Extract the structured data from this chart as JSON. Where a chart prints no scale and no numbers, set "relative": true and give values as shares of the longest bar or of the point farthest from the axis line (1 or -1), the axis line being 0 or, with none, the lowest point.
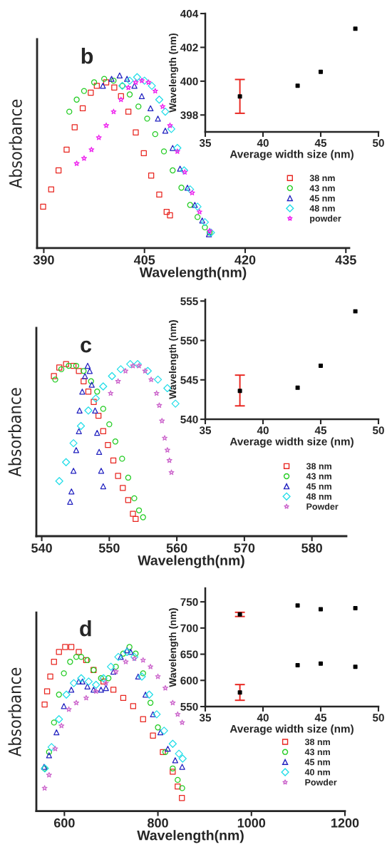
{
  "chart_data": [
    {
      "type": "scatter",
      "relative": true,
      "tick_labels": "x",
      "xlabel": "Wavelength(nm)",
      "ylabel": "Absorbance",
      "xlim": [
        389,
        435.5
      ],
      "xticks": [
        390,
        405,
        420,
        435
      ],
      "legend": "bottom right",
      "annotations": [
        "b"
      ],
      "series": [
        {
          "name": "38 nm",
          "color": "#e8251f",
          "marker": "square",
          "x": [
            389.9,
            391.1,
            392.2,
            393.4,
            394.6,
            395.8,
            397.0,
            397.9,
            399.3,
            400.5,
            401.5,
            402.6,
            403.7,
            404.9,
            406.0,
            407.2,
            408.3,
            408.8
          ],
          "values": [
            0.24,
            0.34,
            0.45,
            0.57,
            0.7,
            0.81,
            0.9,
            0.94,
            0.96,
            0.93,
            0.88,
            0.79,
            0.67,
            0.55,
            0.42,
            0.31,
            0.21,
            0.19
          ]
        },
        {
          "name": "43 nm",
          "color": "#22cc22",
          "marker": "circle",
          "x": [
            393.8,
            394.9,
            396.0,
            397.5,
            399.0,
            400.4,
            401.7,
            402.8,
            404.1,
            405.4,
            406.6,
            407.9,
            409.2,
            410.5,
            411.8,
            412.9,
            414.0,
            414.7
          ],
          "values": [
            0.79,
            0.86,
            0.91,
            0.96,
            0.98,
            0.97,
            0.94,
            0.89,
            0.82,
            0.75,
            0.66,
            0.56,
            0.45,
            0.35,
            0.25,
            0.18,
            0.12,
            0.09
          ]
        },
        {
          "name": "45 nm",
          "color": "#2222c0",
          "marker": "triangle",
          "x": [
            398.8,
            400.1,
            401.3,
            402.4,
            403.5,
            404.6,
            405.9,
            407.0,
            408.1,
            409.2,
            410.3,
            411.4,
            412.5,
            413.6,
            414.6
          ],
          "values": [
            0.94,
            0.98,
            1.0,
            0.98,
            0.94,
            0.88,
            0.81,
            0.75,
            0.68,
            0.58,
            0.46,
            0.35,
            0.25,
            0.16,
            0.08
          ]
        },
        {
          "name": "48 nm",
          "color": "#22dde8",
          "marker": "diamond",
          "x": [
            401.7,
            402.8,
            403.9,
            405.0,
            406.1,
            407.2,
            408.1,
            409.0,
            409.9,
            410.9,
            411.8,
            412.9,
            414.0,
            414.9
          ],
          "values": [
            0.94,
            0.97,
            0.99,
            0.97,
            0.94,
            0.86,
            0.79,
            0.69,
            0.58,
            0.45,
            0.34,
            0.24,
            0.15,
            0.09
          ]
        },
        {
          "name": "powder",
          "color": "#ee22ee",
          "marker": "star",
          "x": [
            394.9,
            396.0,
            397.1,
            398.2,
            399.3,
            400.4,
            401.5,
            402.6,
            403.7,
            404.6,
            405.6,
            406.6,
            407.7,
            408.8,
            409.9,
            411.0,
            412.1,
            413.2,
            414.7
          ],
          "values": [
            0.49,
            0.52,
            0.57,
            0.64,
            0.71,
            0.79,
            0.86,
            0.93,
            0.96,
            0.97,
            0.96,
            0.91,
            0.82,
            0.71,
            0.56,
            0.44,
            0.32,
            0.21,
            0.1
          ]
        }
      ]
    },
    {
      "type": "scatter",
      "xlabel": "Average width size (nm)",
      "ylabel": "Wavelength (nm)",
      "xlim": [
        35,
        50
      ],
      "xticks": [
        35,
        40,
        45,
        50
      ],
      "ylim": [
        397,
        404
      ],
      "yticks": [
        398,
        400,
        402,
        404
      ],
      "series": [
        {
          "color": "#000000",
          "marker": "square",
          "x": [
            38,
            43,
            45,
            48
          ],
          "values": [
            399.1,
            399.73,
            400.55,
            403.1
          ],
          "errors": [
            [
              398.1,
              400.1
            ],
            null,
            null,
            null
          ]
        }
      ]
    },
    {
      "type": "scatter",
      "relative": true,
      "tick_labels": "x",
      "xlabel": "Wavelength(nm)",
      "ylabel": "Absorbance",
      "xlim": [
        539.2,
        585.1
      ],
      "xticks": [
        540,
        550,
        560,
        570,
        580
      ],
      "legend": "bottom right",
      "annotations": [
        "c"
      ],
      "series": [
        {
          "name": "38 nm",
          "color": "#e8251f",
          "marker": "square",
          "x": [
            541.8,
            542.6,
            543.6,
            544.7,
            545.5,
            546.2,
            546.9,
            547.7,
            548.4,
            549.1,
            549.8,
            550.6,
            551.3,
            552.0,
            552.8,
            553.5,
            553.9
          ],
          "values": [
            0.93,
            0.98,
            1.0,
            0.99,
            0.96,
            0.9,
            0.84,
            0.78,
            0.7,
            0.61,
            0.53,
            0.44,
            0.35,
            0.28,
            0.21,
            0.13,
            0.1
          ]
        },
        {
          "name": "43 nm",
          "color": "#22cc22",
          "marker": "circle",
          "x": [
            542.0,
            542.9,
            544.0,
            545.1,
            546.2,
            547.3,
            548.2,
            549.1,
            550.0,
            550.9,
            551.9,
            552.8,
            553.7,
            554.4,
            555.0
          ],
          "values": [
            0.91,
            0.97,
            0.99,
            0.99,
            0.96,
            0.9,
            0.84,
            0.74,
            0.65,
            0.55,
            0.45,
            0.34,
            0.22,
            0.15,
            0.11
          ]
        },
        {
          "name": "45 nm",
          "color": "#2222c0",
          "marker": "triangle",
          "x": [
            544.2,
            544.4,
            544.7,
            545.1,
            545.5,
            545.6,
            546.0,
            546.4,
            546.8,
            547.1,
            547.4,
            547.9,
            548.2,
            548.5,
            548.8,
            549.1
          ],
          "values": [
            0.2,
            0.26,
            0.38,
            0.5,
            0.61,
            0.73,
            0.84,
            0.93,
            0.99,
            0.96,
            0.88,
            0.73,
            0.6,
            0.49,
            0.38,
            0.29
          ]
        },
        {
          "name": "48 nm",
          "color": "#22dde8",
          "marker": "diamond",
          "x": [
            542.6,
            543.6,
            544.7,
            545.8,
            546.9,
            548.0,
            549.1,
            550.4,
            551.7,
            553.1,
            554.2,
            555.7,
            557.2,
            558.6,
            559.8
          ],
          "values": [
            0.32,
            0.43,
            0.54,
            0.64,
            0.73,
            0.8,
            0.87,
            0.93,
            0.97,
            1.0,
            1.0,
            0.96,
            0.91,
            0.86,
            0.77
          ]
        },
        {
          "name": "Powder",
          "color": "#cc66cc",
          "marker": "star",
          "x": [
            550.2,
            551.3,
            552.4,
            553.5,
            554.4,
            555.3,
            556.2,
            557.0,
            557.4,
            557.8,
            558.2,
            558.6,
            558.9,
            559.2
          ],
          "values": [
            0.83,
            0.9,
            0.96,
            0.99,
            0.99,
            0.96,
            0.91,
            0.83,
            0.76,
            0.67,
            0.57,
            0.5,
            0.44,
            0.37
          ]
        }
      ]
    },
    {
      "type": "scatter",
      "xlabel": "Average width size (nm)",
      "ylabel": "Wavelength (nm)",
      "xlim": [
        35,
        50
      ],
      "xticks": [
        35,
        40,
        45,
        50
      ],
      "ylim": [
        540,
        555.2
      ],
      "yticks": [
        540,
        545,
        550,
        555
      ],
      "series": [
        {
          "color": "#000000",
          "marker": "square",
          "x": [
            38,
            43,
            45,
            48
          ],
          "values": [
            543.6,
            544.0,
            546.8,
            553.7
          ],
          "errors": [
            [
              541.7,
              545.6
            ],
            null,
            null,
            null
          ]
        }
      ]
    },
    {
      "type": "scatter",
      "relative": true,
      "tick_labels": "x",
      "xlabel": "Wavelength(nm)",
      "ylabel": "Absorbance",
      "xlim": [
        540,
        1200
      ],
      "xticks": [
        600,
        800,
        1000,
        1200
      ],
      "legend": "bottom right",
      "annotations": [
        "d"
      ],
      "series": [
        {
          "name": "38 nm",
          "color": "#e8251f",
          "marker": "square",
          "x": [
            557.7,
            563.0,
            569.8,
            577.8,
            588.4,
            601.6,
            614.8,
            630.7,
            646.6,
            662.4,
            683.6,
            704.8,
            725.9,
            747.1,
            768.3,
            789.4,
            810.6,
            831.7,
            842.3,
            851.3
          ],
          "values": [
            0.65,
            0.73,
            0.82,
            0.91,
            0.97,
            1.0,
            1.0,
            0.97,
            0.92,
            0.86,
            0.79,
            0.74,
            0.69,
            0.64,
            0.56,
            0.46,
            0.36,
            0.24,
            0.15,
            0.08
          ]
        },
        {
          "name": "43 nm",
          "color": "#22cc22",
          "marker": "circle",
          "x": [
            557.7,
            567.2,
            577.8,
            588.4,
            598.9,
            612.2,
            625.4,
            636.0,
            649.2,
            662.4,
            678.3,
            694.2,
            710.1,
            725.9,
            739.2,
            752.4,
            768.3,
            784.1,
            800.0,
            815.9,
            831.7,
            842.3,
            851.9
          ],
          "values": [
            0.26,
            0.36,
            0.54,
            0.71,
            0.84,
            0.91,
            0.94,
            0.94,
            0.92,
            0.86,
            0.81,
            0.81,
            0.88,
            0.96,
            1.0,
            0.96,
            0.84,
            0.66,
            0.51,
            0.36,
            0.26,
            0.19,
            0.14
          ]
        },
        {
          "name": "45 nm",
          "color": "#2222c0",
          "marker": "triangle",
          "x": [
            556.6,
            567.2,
            583.1,
            598.9,
            614.8,
            630.7,
            638.6,
            649.2,
            662.4,
            678.3,
            688.9,
            704.8,
            720.6,
            733.9,
            741.8,
            757.7,
            773.5,
            789.4,
            805.3,
            821.2,
            837.0,
            851.9
          ],
          "values": [
            0.27,
            0.34,
            0.48,
            0.64,
            0.74,
            0.79,
            0.79,
            0.76,
            0.74,
            0.74,
            0.75,
            0.85,
            0.94,
            0.98,
            0.97,
            0.82,
            0.71,
            0.59,
            0.48,
            0.38,
            0.31,
            0.27
          ]
        },
        {
          "name": "40 nm",
          "color": "#22dde8",
          "marker": "diamond",
          "x": [
            558.2,
            572.5,
            588.4,
            604.2,
            620.1,
            636.0,
            651.9,
            667.7,
            683.6,
            699.5,
            715.3,
            733.9,
            749.7,
            765.6,
            781.5,
            797.4,
            813.2,
            831.7,
            845.0,
            852.9
          ],
          "values": [
            0.26,
            0.39,
            0.56,
            0.71,
            0.78,
            0.81,
            0.79,
            0.77,
            0.81,
            0.88,
            0.94,
            0.97,
            0.94,
            0.82,
            0.71,
            0.59,
            0.49,
            0.41,
            0.35,
            0.32
          ]
        },
        {
          "name": "Powder",
          "color": "#cc66cc",
          "marker": "star",
          "x": [
            557.7,
            567.2,
            580.4,
            593.7,
            609.5,
            625.4,
            646.6,
            667.7,
            688.9,
            710.1,
            731.2,
            749.7,
            768.3,
            784.1,
            800.0,
            815.9,
            831.7,
            842.3,
            851.9
          ],
          "values": [
            0.14,
            0.22,
            0.38,
            0.52,
            0.62,
            0.66,
            0.69,
            0.73,
            0.78,
            0.85,
            0.91,
            0.93,
            0.92,
            0.88,
            0.82,
            0.75,
            0.66,
            0.59,
            0.54
          ]
        }
      ]
    },
    {
      "type": "scatter",
      "xlabel": "Average width size (nm)",
      "ylabel": "Wavelength (nm)",
      "xlim": [
        35,
        50
      ],
      "xticks": [
        35,
        40,
        45,
        50
      ],
      "ylim": [
        550,
        776
      ],
      "yticks": [
        550,
        600,
        650,
        700,
        750
      ],
      "series": [
        {
          "color": "#000000",
          "marker": "square",
          "x": [
            38,
            43,
            45,
            48
          ],
          "values": [
            726,
            743,
            736,
            738
          ],
          "errors": [
            [
              722,
              730
            ],
            null,
            null,
            null
          ]
        },
        {
          "color": "#000000",
          "marker": "square",
          "x": [
            38,
            43,
            45,
            48
          ],
          "values": [
            577,
            629,
            632,
            626
          ],
          "errors": [
            [
              562,
              592
            ],
            null,
            null,
            null
          ]
        }
      ]
    }
  ]
}
